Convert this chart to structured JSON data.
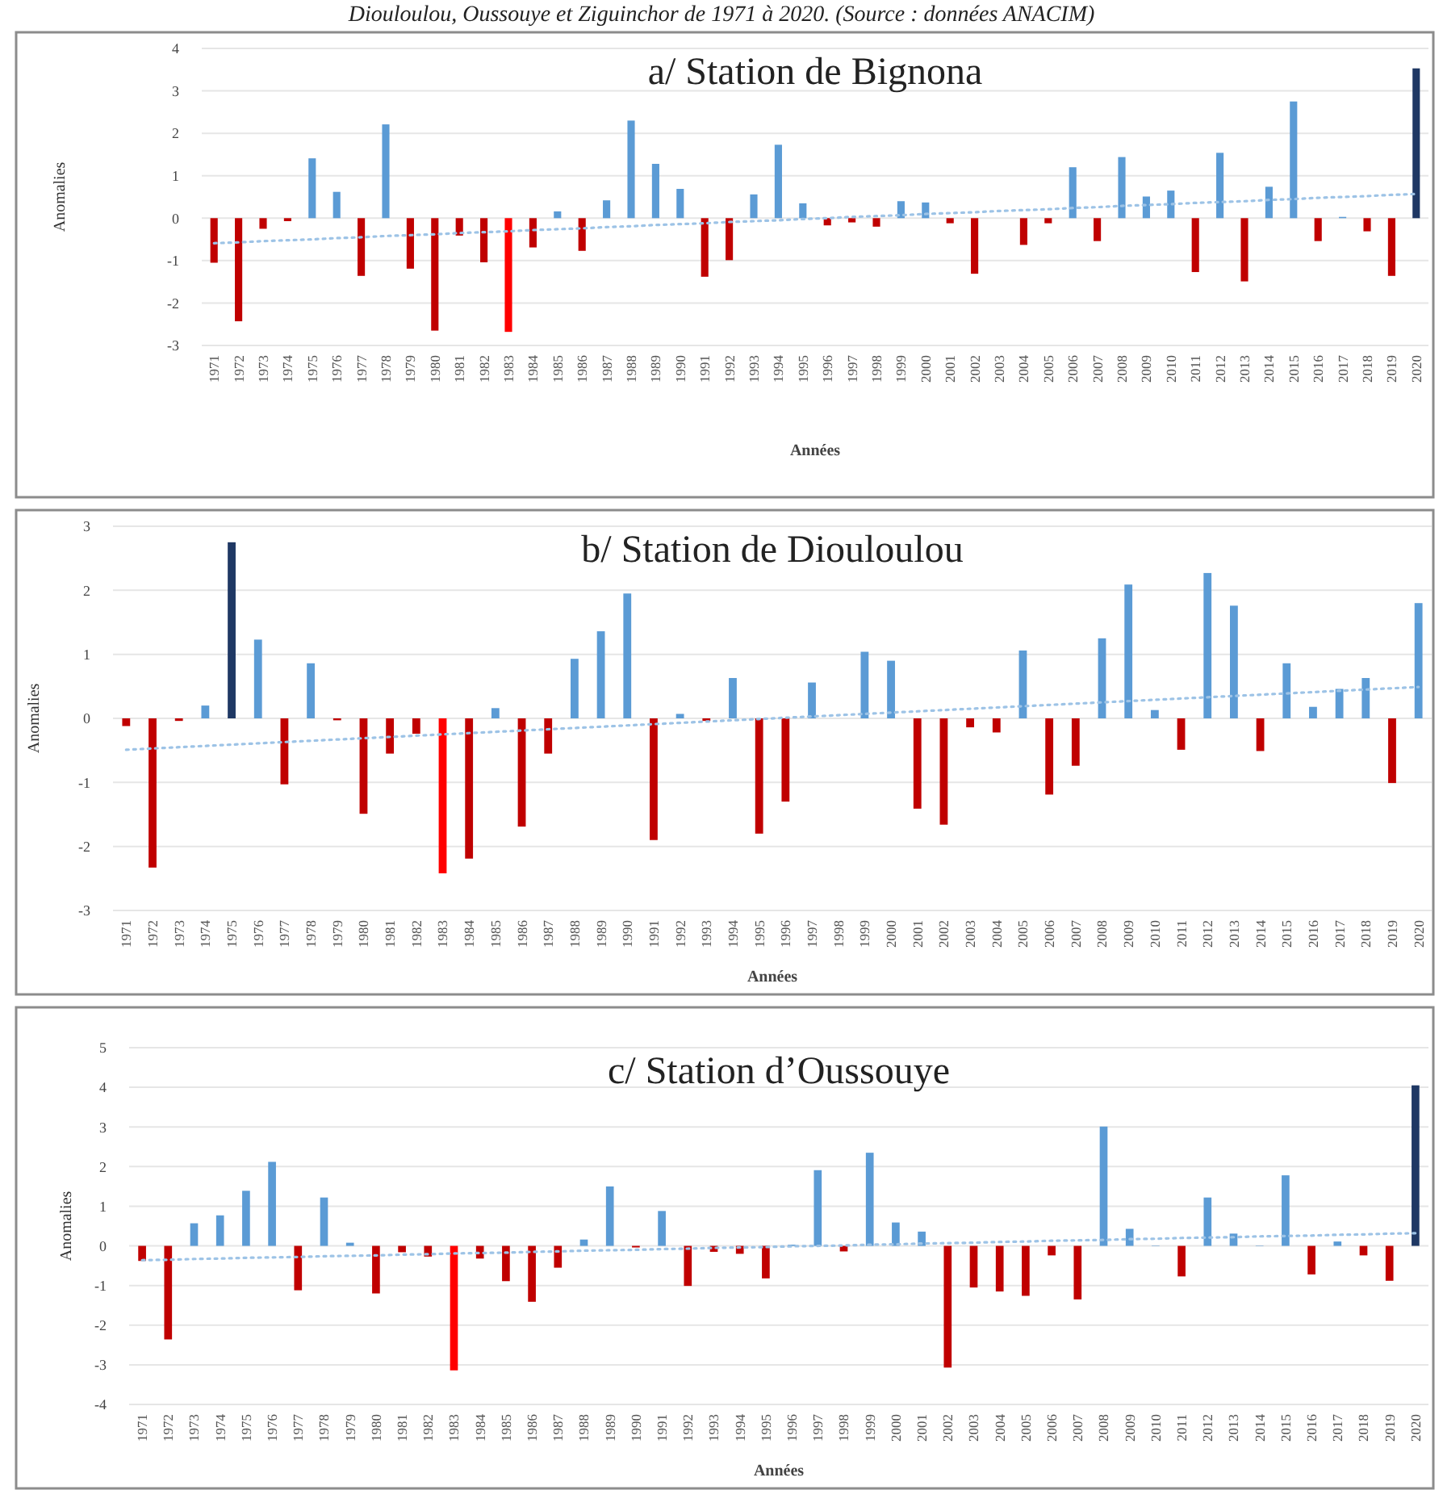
{
  "chart_data": [
    {
      "type": "bar",
      "title": "a/ Station de Bignona",
      "xlabel": "Années",
      "ylabel": "Anomalies",
      "annotations": [
        "Diouloulou, Oussouye et Ziguinchor de 1971 à 2020. (Source : données ANACIM)"
      ],
      "categories": [
        "1971",
        "1972",
        "1973",
        "1974",
        "1975",
        "1976",
        "1977",
        "1978",
        "1979",
        "1980",
        "1981",
        "1982",
        "1983",
        "1984",
        "1985",
        "1986",
        "1987",
        "1988",
        "1989",
        "1990",
        "1991",
        "1992",
        "1993",
        "1994",
        "1995",
        "1996",
        "1997",
        "1998",
        "1999",
        "2000",
        "2001",
        "2002",
        "2003",
        "2004",
        "2005",
        "2006",
        "2007",
        "2008",
        "2009",
        "2010",
        "2011",
        "2012",
        "2013",
        "2014",
        "2015",
        "2016",
        "2017",
        "2018",
        "2019",
        "2020"
      ],
      "series": [
        {
          "values": [
            -1.05,
            -2.43,
            -0.25,
            -0.07,
            1.41,
            0.62,
            -1.36,
            2.21,
            -1.19,
            -2.65,
            -0.41,
            -1.04,
            -2.68,
            -0.69,
            0.16,
            -0.77,
            0.42,
            2.3,
            1.28,
            0.69,
            -1.38,
            -0.99,
            0.56,
            1.73,
            0.35,
            -0.17,
            -0.1,
            -0.2,
            0.4,
            0.37,
            -0.12,
            -1.31,
            0,
            -0.63,
            -0.12,
            1.2,
            -0.54,
            1.44,
            0.51,
            0.65,
            -1.27,
            1.54,
            -1.49,
            0.74,
            2.75,
            -0.54,
            0.03,
            -0.31,
            -1.36,
            3.53
          ],
          "colors": [
            "#c00000",
            "#c00000",
            "#c00000",
            "#c00000",
            "#5b9bd5",
            "#5b9bd5",
            "#c00000",
            "#5b9bd5",
            "#c00000",
            "#c00000",
            "#c00000",
            "#c00000",
            "#ff0000",
            "#c00000",
            "#5b9bd5",
            "#c00000",
            "#5b9bd5",
            "#5b9bd5",
            "#5b9bd5",
            "#5b9bd5",
            "#c00000",
            "#c00000",
            "#5b9bd5",
            "#5b9bd5",
            "#5b9bd5",
            "#c00000",
            "#c00000",
            "#c00000",
            "#5b9bd5",
            "#5b9bd5",
            "#c00000",
            "#c00000",
            "#5b9bd5",
            "#c00000",
            "#c00000",
            "#5b9bd5",
            "#c00000",
            "#5b9bd5",
            "#5b9bd5",
            "#5b9bd5",
            "#c00000",
            "#5b9bd5",
            "#c00000",
            "#5b9bd5",
            "#5b9bd5",
            "#c00000",
            "#5b9bd5",
            "#c00000",
            "#c00000",
            "#1f3864"
          ]
        },
        {
          "type": "line",
          "color": "#9dc3e6",
          "line_style": "dotted",
          "values": [
            -0.59,
            -0.57,
            -0.54,
            -0.52,
            -0.5,
            -0.47,
            -0.45,
            -0.42,
            -0.4,
            -0.38,
            -0.35,
            -0.33,
            -0.31,
            -0.28,
            -0.26,
            -0.24,
            -0.21,
            -0.19,
            -0.16,
            -0.14,
            -0.12,
            -0.09,
            -0.07,
            -0.05,
            -0.02,
            0,
            0.03,
            0.05,
            0.07,
            0.1,
            0.12,
            0.14,
            0.17,
            0.19,
            0.21,
            0.24,
            0.26,
            0.29,
            0.31,
            0.33,
            0.36,
            0.38,
            0.4,
            0.43,
            0.45,
            0.48,
            0.5,
            0.52,
            0.55,
            0.57
          ]
        }
      ],
      "ylim": [
        -3,
        4
      ],
      "yticks": [
        -3,
        -2,
        -1,
        0,
        1,
        2,
        3,
        4
      ],
      "grid": "y"
    },
    {
      "type": "bar",
      "title": "b/ Station de Diouloulou",
      "xlabel": "Années",
      "ylabel": "Anomalies",
      "categories": [
        "1971",
        "1972",
        "1973",
        "1974",
        "1975",
        "1976",
        "1977",
        "1978",
        "1979",
        "1980",
        "1981",
        "1982",
        "1983",
        "1984",
        "1985",
        "1986",
        "1987",
        "1988",
        "1989",
        "1990",
        "1991",
        "1992",
        "1993",
        "1994",
        "1995",
        "1996",
        "1997",
        "1998",
        "1999",
        "2000",
        "2001",
        "2002",
        "2003",
        "2004",
        "2005",
        "2006",
        "2007",
        "2008",
        "2009",
        "2010",
        "2011",
        "2012",
        "2013",
        "2014",
        "2015",
        "2016",
        "2017",
        "2018",
        "2019",
        "2020"
      ],
      "series": [
        {
          "values": [
            -0.12,
            -2.33,
            -0.04,
            0.2,
            2.75,
            1.23,
            -1.03,
            0.86,
            -0.03,
            -1.49,
            -0.55,
            -0.24,
            -2.42,
            -2.19,
            0.16,
            -1.69,
            -0.55,
            0.93,
            1.36,
            1.95,
            -1.9,
            0.07,
            -0.04,
            0.63,
            -1.8,
            -1.3,
            0.56,
            0,
            1.04,
            0.9,
            -1.41,
            -1.66,
            -0.14,
            -0.22,
            1.06,
            -1.19,
            -0.74,
            1.25,
            2.09,
            0.13,
            -0.49,
            2.27,
            1.76,
            -0.51,
            0.86,
            0.18,
            0.46,
            0.63,
            -1.01,
            1.8
          ],
          "colors": [
            "#c00000",
            "#c00000",
            "#c00000",
            "#5b9bd5",
            "#1f3864",
            "#5b9bd5",
            "#c00000",
            "#5b9bd5",
            "#c00000",
            "#c00000",
            "#c00000",
            "#c00000",
            "#ff0000",
            "#c00000",
            "#5b9bd5",
            "#c00000",
            "#c00000",
            "#5b9bd5",
            "#5b9bd5",
            "#5b9bd5",
            "#c00000",
            "#5b9bd5",
            "#c00000",
            "#5b9bd5",
            "#c00000",
            "#c00000",
            "#5b9bd5",
            "#5b9bd5",
            "#5b9bd5",
            "#5b9bd5",
            "#c00000",
            "#c00000",
            "#c00000",
            "#c00000",
            "#5b9bd5",
            "#c00000",
            "#c00000",
            "#5b9bd5",
            "#5b9bd5",
            "#5b9bd5",
            "#c00000",
            "#5b9bd5",
            "#5b9bd5",
            "#c00000",
            "#5b9bd5",
            "#5b9bd5",
            "#5b9bd5",
            "#5b9bd5",
            "#c00000",
            "#5b9bd5"
          ]
        },
        {
          "type": "line",
          "color": "#9dc3e6",
          "line_style": "dotted",
          "values": [
            -0.49,
            -0.47,
            -0.45,
            -0.43,
            -0.41,
            -0.39,
            -0.37,
            -0.35,
            -0.33,
            -0.31,
            -0.29,
            -0.27,
            -0.25,
            -0.23,
            -0.21,
            -0.19,
            -0.17,
            -0.15,
            -0.13,
            -0.11,
            -0.09,
            -0.07,
            -0.05,
            -0.03,
            -0.01,
            0.01,
            0.03,
            0.05,
            0.07,
            0.09,
            0.11,
            0.13,
            0.15,
            0.17,
            0.19,
            0.21,
            0.23,
            0.25,
            0.27,
            0.29,
            0.31,
            0.33,
            0.35,
            0.37,
            0.39,
            0.41,
            0.43,
            0.45,
            0.47,
            0.49
          ]
        }
      ],
      "ylim": [
        -3,
        3
      ],
      "yticks": [
        -3,
        -2,
        -1,
        0,
        1,
        2,
        3
      ],
      "grid": "y"
    },
    {
      "type": "bar",
      "title": "c/ Station d’Oussouye",
      "xlabel": "Années",
      "ylabel": "Anomalies",
      "categories": [
        "1971",
        "1972",
        "1973",
        "1974",
        "1975",
        "1976",
        "1977",
        "1978",
        "1979",
        "1980",
        "1981",
        "1982",
        "1983",
        "1984",
        "1985",
        "1986",
        "1987",
        "1988",
        "1989",
        "1990",
        "1991",
        "1992",
        "1993",
        "1994",
        "1995",
        "1996",
        "1997",
        "1998",
        "1999",
        "2000",
        "2001",
        "2002",
        "2003",
        "2004",
        "2005",
        "2006",
        "2007",
        "2008",
        "2009",
        "2010",
        "2011",
        "2012",
        "2013",
        "2014",
        "2015",
        "2016",
        "2017",
        "2018",
        "2019",
        "2020"
      ],
      "series": [
        {
          "values": [
            -0.38,
            -2.36,
            0.57,
            0.77,
            1.39,
            2.12,
            -1.12,
            1.22,
            0.08,
            -1.2,
            -0.16,
            -0.27,
            -3.14,
            -0.32,
            -0.89,
            -1.41,
            -0.55,
            0.16,
            1.5,
            -0.04,
            0.88,
            -1.01,
            -0.15,
            -0.2,
            -0.82,
            0.03,
            1.91,
            -0.14,
            2.35,
            0.59,
            0.36,
            -3.07,
            -1.05,
            -1.15,
            -1.26,
            -0.24,
            -1.35,
            3.01,
            0.43,
            0.01,
            -0.77,
            1.22,
            0.31,
            0.01,
            1.78,
            -0.72,
            0.11,
            -0.24,
            -0.88,
            4.05
          ],
          "colors": [
            "#c00000",
            "#c00000",
            "#5b9bd5",
            "#5b9bd5",
            "#5b9bd5",
            "#5b9bd5",
            "#c00000",
            "#5b9bd5",
            "#5b9bd5",
            "#c00000",
            "#c00000",
            "#c00000",
            "#ff0000",
            "#c00000",
            "#c00000",
            "#c00000",
            "#c00000",
            "#5b9bd5",
            "#5b9bd5",
            "#c00000",
            "#5b9bd5",
            "#c00000",
            "#c00000",
            "#c00000",
            "#c00000",
            "#5b9bd5",
            "#5b9bd5",
            "#c00000",
            "#5b9bd5",
            "#5b9bd5",
            "#5b9bd5",
            "#c00000",
            "#c00000",
            "#c00000",
            "#c00000",
            "#c00000",
            "#c00000",
            "#5b9bd5",
            "#5b9bd5",
            "#5b9bd5",
            "#c00000",
            "#5b9bd5",
            "#5b9bd5",
            "#5b9bd5",
            "#5b9bd5",
            "#c00000",
            "#5b9bd5",
            "#c00000",
            "#c00000",
            "#1f3864"
          ]
        },
        {
          "type": "line",
          "color": "#9dc3e6",
          "line_style": "dotted",
          "values": [
            -0.36,
            -0.35,
            -0.33,
            -0.32,
            -0.3,
            -0.29,
            -0.28,
            -0.26,
            -0.25,
            -0.24,
            -0.22,
            -0.21,
            -0.19,
            -0.18,
            -0.17,
            -0.15,
            -0.14,
            -0.12,
            -0.11,
            -0.1,
            -0.08,
            -0.07,
            -0.05,
            -0.04,
            -0.03,
            -0.01,
            0,
            0.01,
            0.03,
            0.04,
            0.06,
            0.07,
            0.08,
            0.1,
            0.11,
            0.13,
            0.14,
            0.15,
            0.17,
            0.18,
            0.2,
            0.21,
            0.22,
            0.24,
            0.25,
            0.26,
            0.28,
            0.29,
            0.31,
            0.32
          ]
        }
      ],
      "ylim": [
        -4,
        5
      ],
      "yticks": [
        -4,
        -3,
        -2,
        -1,
        0,
        1,
        2,
        3,
        4,
        5
      ],
      "grid": "y"
    }
  ]
}
